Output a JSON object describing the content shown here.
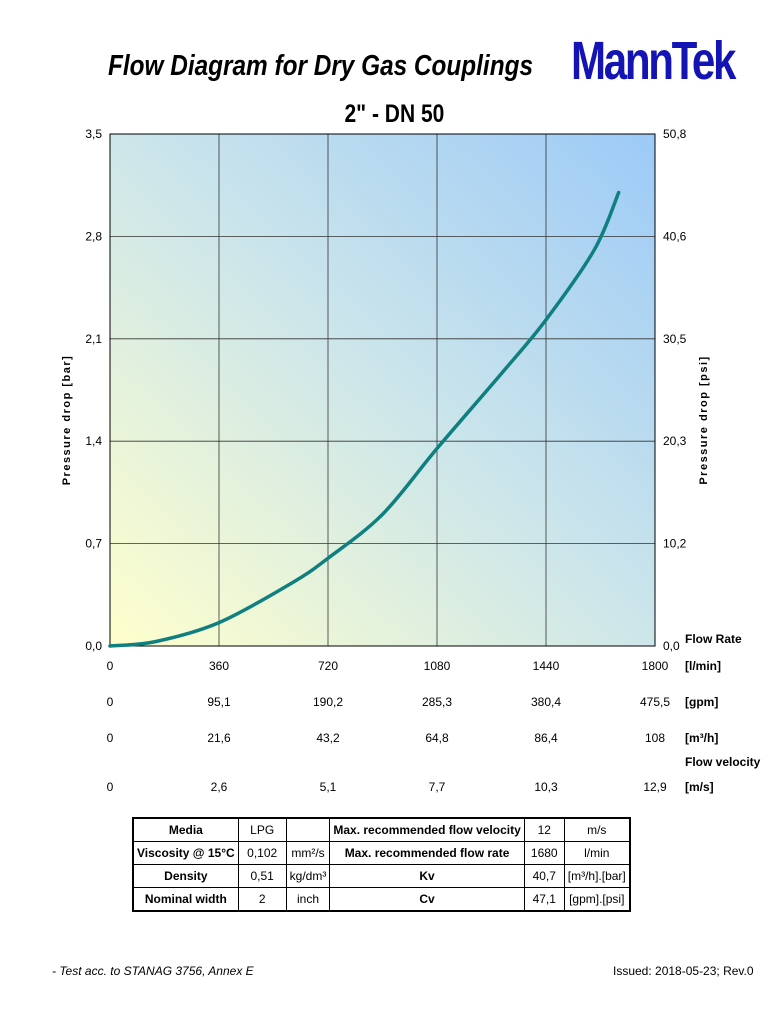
{
  "header": {
    "title": "Flow Diagram for Dry Gas Couplings",
    "subtitle": "2\" - DN 50",
    "logo": "MannTek"
  },
  "chart_data": {
    "type": "line",
    "ylabel_left": "Pressure drop [bar]",
    "ylabel_right": "Pressure drop [psi]",
    "ylim": [
      0,
      3.5
    ],
    "xlim": [
      0,
      1800
    ],
    "y_ticks_left": [
      "3,5",
      "2,8",
      "2,1",
      "1,4",
      "0,7",
      "0,0"
    ],
    "y_ticks_right": [
      "50,8",
      "40,6",
      "30,5",
      "20,3",
      "10,2",
      "0,0"
    ],
    "grid": true,
    "series": [
      {
        "x": [
          0,
          150,
          360,
          600,
          720,
          900,
          1080,
          1300,
          1440,
          1600,
          1680
        ],
        "values": [
          0,
          0.03,
          0.16,
          0.43,
          0.6,
          0.9,
          1.35,
          1.88,
          2.23,
          2.71,
          3.1
        ]
      }
    ],
    "x_axes": [
      {
        "label": "[l/min]",
        "ticks": [
          "0",
          "360",
          "720",
          "1080",
          "1440",
          "1800"
        ]
      },
      {
        "label": "[gpm]",
        "ticks": [
          "0",
          "95,1",
          "190,2",
          "285,3",
          "380,4",
          "475,5"
        ]
      },
      {
        "label": "[m³/h]",
        "ticks": [
          "0",
          "21,6",
          "43,2",
          "64,8",
          "86,4",
          "108"
        ]
      },
      {
        "label": "[m/s]",
        "ticks": [
          "0",
          "2,6",
          "5,1",
          "7,7",
          "10,3",
          "12,9"
        ]
      }
    ],
    "flow_rate_title": "Flow Rate",
    "flow_velocity_title": "Flow velocity",
    "colors": {
      "line": "#0f7f7f",
      "bg_corner_low": "#ffffcc",
      "bg_corner_high": "#9ccaf7"
    }
  },
  "specs": {
    "rows": [
      {
        "l1": "Media",
        "v1": "LPG",
        "u1": "",
        "l2": "Max. recommended flow velocity",
        "v2": "12",
        "u2": "m/s"
      },
      {
        "l1": "Viscosity @ 15°C",
        "v1": "0,102",
        "u1": "mm²/s",
        "l2": "Max. recommended flow rate",
        "v2": "1680",
        "u2": "l/min"
      },
      {
        "l1": "Density",
        "v1": "0,51",
        "u1": "kg/dm³",
        "l2": "Kv",
        "v2": "40,7",
        "u2": "[m³/h].[bar]"
      },
      {
        "l1": "Nominal width",
        "v1": "2",
        "u1": "inch",
        "l2": "Cv",
        "v2": "47,1",
        "u2": "[gpm].[psi]"
      }
    ]
  },
  "footer": {
    "note": "- Test acc. to STANAG 3756, Annex E",
    "issued": "Issued: 2018-05-23;  Rev.0"
  }
}
